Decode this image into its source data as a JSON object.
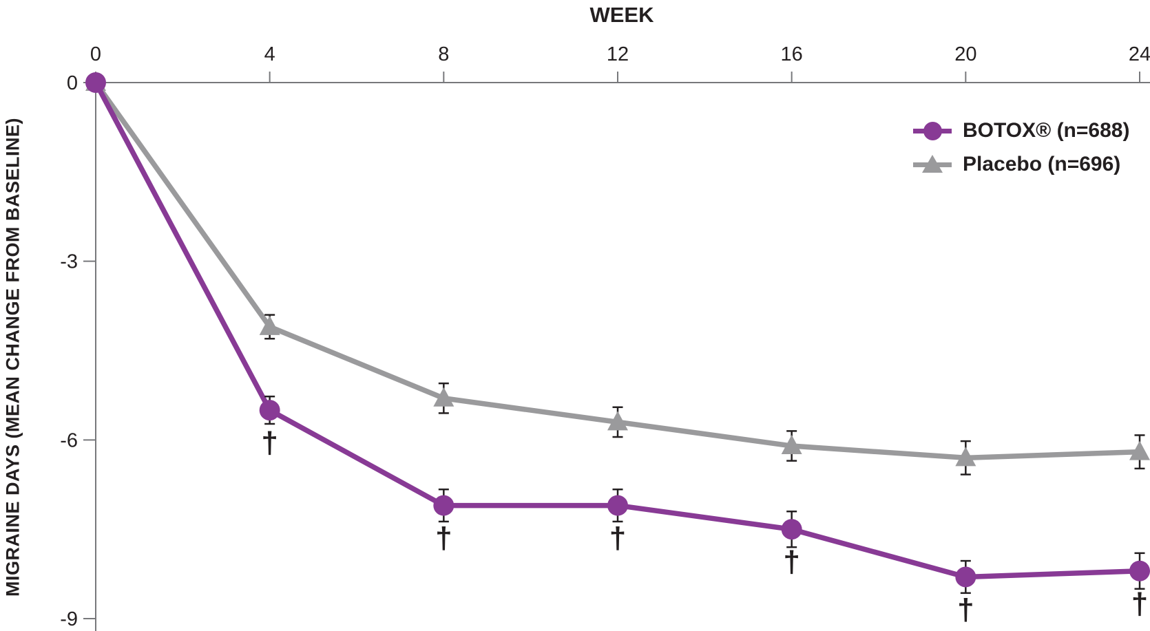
{
  "chart_data": {
    "type": "line",
    "xlabel": "WEEK",
    "ylabel": "MIGRAINE DAYS (MEAN CHANGE FROM BASELINE)",
    "x": [
      0,
      4,
      8,
      12,
      16,
      20,
      24
    ],
    "x_ticks": [
      "0",
      "4",
      "8",
      "12",
      "16",
      "20",
      "24"
    ],
    "y_tick_values": [
      0,
      -3,
      -6,
      -9
    ],
    "y_ticks": [
      "0",
      "-3",
      "-6",
      "-9"
    ],
    "xlim": [
      0,
      24
    ],
    "ylim": [
      -9.2,
      0
    ],
    "grid": false,
    "legend_position": "top-right",
    "dagger_symbol": "†",
    "axis_color": "#77787b",
    "text_color": "#231f20",
    "error_bar_color": "#231f20",
    "series": [
      {
        "name": "Placebo (n=696)",
        "marker": "triangle",
        "color": "#9a9a9c",
        "values": [
          0,
          -4.1,
          -5.3,
          -5.7,
          -6.1,
          -6.3,
          -6.2
        ],
        "error": [
          0,
          0.2,
          0.25,
          0.25,
          0.25,
          0.28,
          0.28
        ],
        "daggers": []
      },
      {
        "name": "BOTOX® (n=688)",
        "marker": "circle",
        "color": "#883a95",
        "values": [
          0,
          -5.5,
          -7.1,
          -7.1,
          -7.5,
          -8.3,
          -8.2
        ],
        "error": [
          0,
          0.23,
          0.27,
          0.27,
          0.3,
          0.27,
          0.3
        ],
        "daggers": [
          4,
          8,
          12,
          16,
          20,
          24
        ]
      }
    ]
  },
  "legend": {
    "items": [
      {
        "label": "BOTOX® (n=688)"
      },
      {
        "label": "Placebo (n=696)"
      }
    ]
  }
}
